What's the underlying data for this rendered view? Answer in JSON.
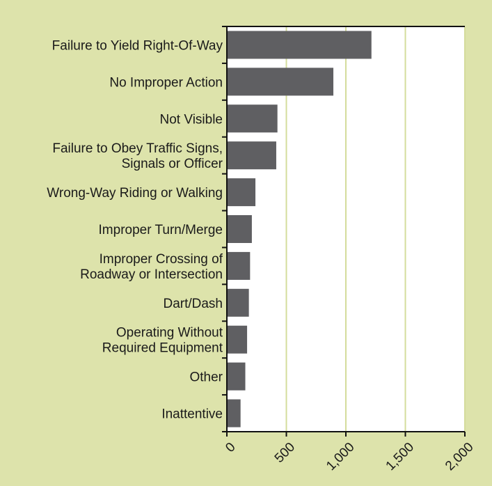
{
  "chart_data": {
    "type": "barh",
    "categories": [
      "Failure to Yield Right-Of-Way",
      "No Improper Action",
      "Not Visible",
      "Failure to Obey Traffic Signs,\nSignals or Officer",
      "Wrong-Way Riding or Walking",
      "Improper Turn/Merge",
      "Improper Crossing of\nRoadway or Intersection",
      "Dart/Dash",
      "Operating Without\nRequired Equipment",
      "Other",
      "Inattentive"
    ],
    "values": [
      1215,
      895,
      425,
      415,
      240,
      210,
      195,
      185,
      170,
      155,
      115
    ],
    "color": "#5f5f62",
    "xlim": [
      0,
      2000
    ],
    "xticks": [
      0,
      500,
      {
        "value": 1000,
        "label": "1,000"
      },
      {
        "value": 1500,
        "label": "1,500"
      },
      {
        "value": 2000,
        "label": "2,000"
      }
    ],
    "grid": true,
    "grid_color": "#d4dc9c"
  }
}
